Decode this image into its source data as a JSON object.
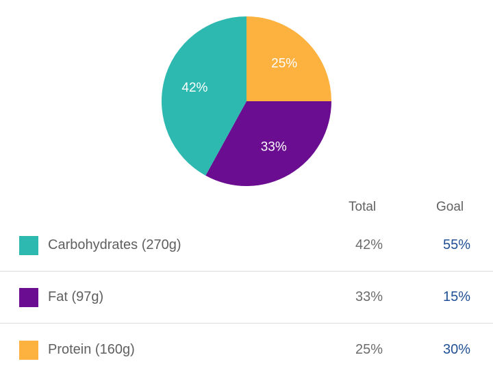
{
  "chart_data": {
    "type": "pie",
    "slices": [
      {
        "label": "25%",
        "value": 25,
        "color": "#FDB13F"
      },
      {
        "label": "33%",
        "value": 33,
        "color": "#6A0D91"
      },
      {
        "label": "42%",
        "value": 42,
        "color": "#2DB9B0"
      }
    ]
  },
  "table": {
    "headers": {
      "total": "Total",
      "goal": "Goal"
    },
    "rows": [
      {
        "label": "Carbohydrates (270g)",
        "total": "42%",
        "goal": "55%",
        "color": "#2DB9B0"
      },
      {
        "label": "Fat (97g)",
        "total": "33%",
        "goal": "15%",
        "color": "#6A0D91"
      },
      {
        "label": "Protein (160g)",
        "total": "25%",
        "goal": "30%",
        "color": "#FDB13F"
      }
    ]
  }
}
